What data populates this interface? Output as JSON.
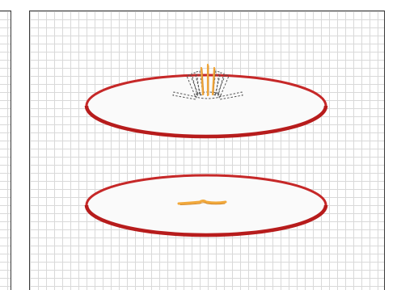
{
  "panels": [
    {
      "id": "left",
      "visible": "partial"
    },
    {
      "id": "right",
      "scenes": [
        {
          "id": "top",
          "plate_color": "#c62828",
          "plate_fill": "#fafafa",
          "stick_color": "#f2a93b",
          "state": "standing-with-fall-arcs"
        },
        {
          "id": "bottom",
          "plate_color": "#c62828",
          "plate_fill": "#fafafa",
          "stick_color": "#f2a93b",
          "state": "fallen"
        }
      ]
    }
  ]
}
